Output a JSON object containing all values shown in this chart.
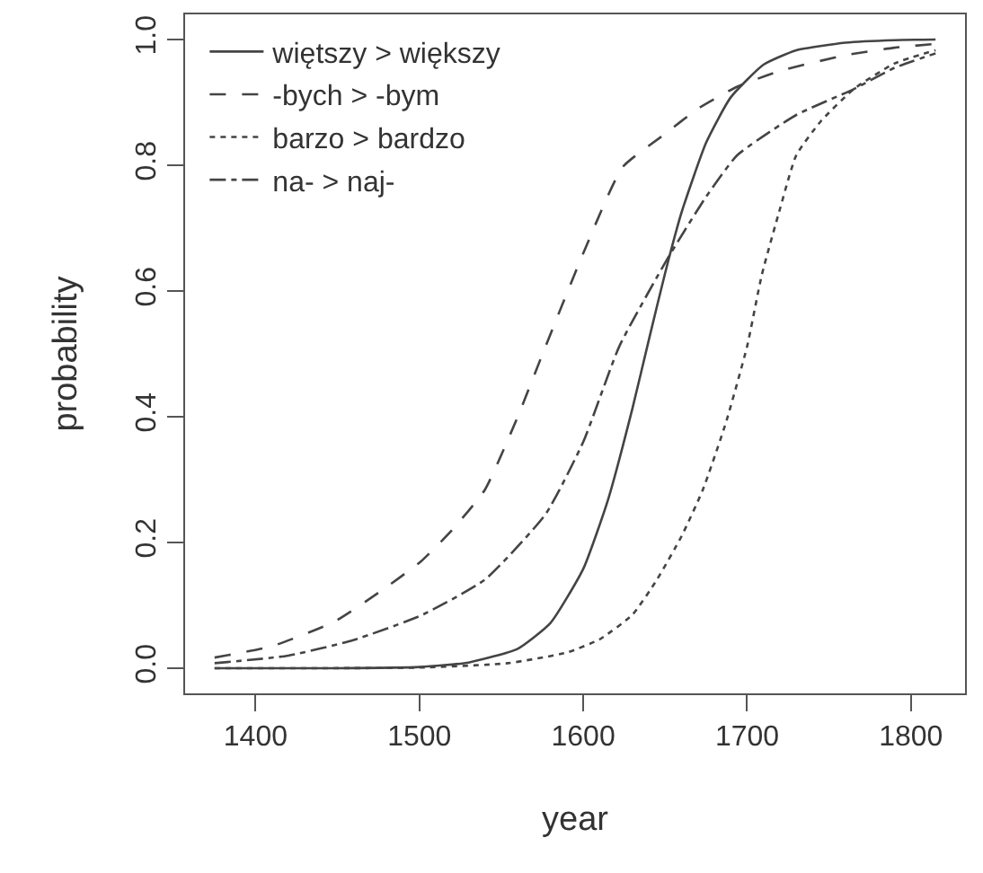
{
  "chart_data": {
    "type": "line",
    "xlabel": "year",
    "ylabel": "probability",
    "xlim": [
      1357,
      1833
    ],
    "xticks": [
      1400,
      1500,
      1600,
      1700,
      1800
    ],
    "ylim": [
      -0.04,
      1.04
    ],
    "yticks": [
      {
        "value": 0,
        "label": "0.0"
      },
      {
        "value": 0.2,
        "label": "0.2"
      },
      {
        "value": 0.4,
        "label": "0.4"
      },
      {
        "value": 0.6,
        "label": "0.6"
      },
      {
        "value": 0.8,
        "label": "0.8"
      },
      {
        "value": 1,
        "label": "1.0"
      }
    ],
    "grid": false,
    "legend": "top left",
    "marker": "none",
    "series": [
      {
        "name": "więtszy > większy",
        "color": "#444444",
        "line_style": "solid",
        "x": [
          1375,
          1400,
          1450,
          1500,
          1530,
          1560,
          1580,
          1600,
          1615,
          1630,
          1640,
          1650,
          1660,
          1675,
          1690,
          1710,
          1730,
          1760,
          1790,
          1815
        ],
        "values": [
          0,
          0,
          0,
          0.002,
          0.009,
          0.031,
          0.072,
          0.158,
          0.267,
          0.413,
          0.522,
          0.629,
          0.725,
          0.836,
          0.908,
          0.96,
          0.983,
          0.995,
          0.999,
          1
        ]
      },
      {
        "name": "-bych > -bym",
        "color": "#444444",
        "line_style": "dashed",
        "x": [
          1375,
          1410,
          1448,
          1475,
          1501,
          1520,
          1540,
          1560,
          1577,
          1600,
          1624,
          1650,
          1670,
          1694,
          1720,
          1760,
          1790,
          1815
        ],
        "values": [
          0.017,
          0.035,
          0.074,
          0.12,
          0.17,
          0.22,
          0.284,
          0.4,
          0.512,
          0.66,
          0.797,
          0.85,
          0.89,
          0.925,
          0.95,
          0.975,
          0.987,
          0.993
        ]
      },
      {
        "name": "barzo > bardzo",
        "color": "#444444",
        "line_style": "dotted",
        "x": [
          1375,
          1500,
          1554,
          1590,
          1610,
          1630,
          1645,
          1660,
          1673,
          1687,
          1700,
          1709,
          1720,
          1730,
          1745,
          1765,
          1790,
          1815
        ],
        "values": [
          0,
          0.001,
          0.008,
          0.025,
          0.046,
          0.085,
          0.141,
          0.21,
          0.284,
          0.39,
          0.512,
          0.626,
          0.73,
          0.816,
          0.87,
          0.921,
          0.962,
          0.983
        ]
      },
      {
        "name": "na- > naj-",
        "color": "#444444",
        "line_style": "dashdot",
        "x": [
          1375,
          1420,
          1460,
          1501,
          1540,
          1577,
          1600,
          1622,
          1652,
          1675,
          1694,
          1730,
          1765,
          1790,
          1815
        ],
        "values": [
          0.008,
          0.02,
          0.045,
          0.084,
          0.141,
          0.245,
          0.36,
          0.512,
          0.654,
          0.75,
          0.816,
          0.88,
          0.921,
          0.955,
          0.978
        ]
      }
    ]
  }
}
